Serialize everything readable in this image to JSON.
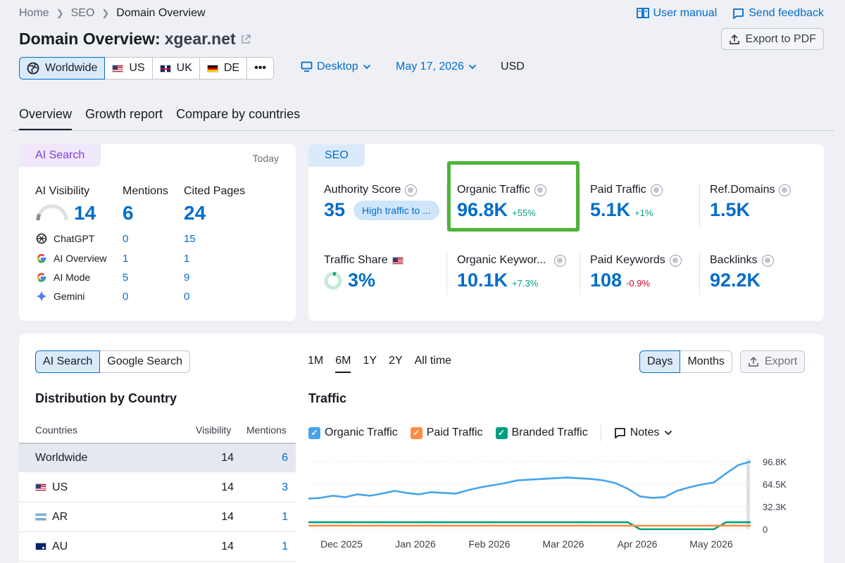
{
  "breadcrumb": [
    "Home",
    "SEO",
    "Domain Overview"
  ],
  "header": {
    "title_prefix": "Domain Overview:",
    "domain": "xgear.net",
    "user_manual": "User manual",
    "send_feedback": "Send feedback",
    "export_pdf": "Export to PDF"
  },
  "regions": [
    {
      "label": "Worldwide",
      "icon": "globe-icon",
      "selected": true
    },
    {
      "label": "US",
      "icon": "flag-us-icon"
    },
    {
      "label": "UK",
      "icon": "flag-uk-icon"
    },
    {
      "label": "DE",
      "icon": "flag-de-icon"
    },
    {
      "label": "•••",
      "icon": "more-icon"
    }
  ],
  "filters": {
    "device": "Desktop",
    "date": "May 17, 2026",
    "currency": "USD"
  },
  "tabs": [
    "Overview",
    "Growth report",
    "Compare by countries"
  ],
  "ai_card": {
    "tab": "AI Search",
    "period": "Today",
    "headers": [
      "AI Visibility",
      "Mentions",
      "Cited Pages"
    ],
    "totals": {
      "visibility": "14",
      "mentions": "6",
      "cited": "24"
    },
    "visibility_fraction": 0.14,
    "rows": [
      {
        "name": "ChatGPT",
        "mentions": "0",
        "cited": "15",
        "icon": "chatgpt-icon"
      },
      {
        "name": "AI Overview",
        "mentions": "1",
        "cited": "1",
        "icon": "google-icon"
      },
      {
        "name": "AI Mode",
        "mentions": "5",
        "cited": "9",
        "icon": "google-icon"
      },
      {
        "name": "Gemini",
        "mentions": "0",
        "cited": "0",
        "icon": "gemini-icon"
      }
    ]
  },
  "seo_card": {
    "tab": "SEO",
    "authority": {
      "label": "Authority Score",
      "value": "35",
      "badge": "High traffic to ..."
    },
    "organic_traffic": {
      "label": "Organic Traffic",
      "value": "96.8K",
      "delta": "+55%"
    },
    "paid_traffic": {
      "label": "Paid Traffic",
      "value": "5.1K",
      "delta": "+1%"
    },
    "ref_domains": {
      "label": "Ref.Domains",
      "value": "1.5K"
    },
    "traffic_share": {
      "label": "Traffic Share",
      "value": "3%",
      "fraction": 0.03
    },
    "organic_keywords": {
      "label": "Organic Keywor...",
      "value": "10.1K",
      "delta": "+7.3%"
    },
    "paid_keywords": {
      "label": "Paid Keywords",
      "value": "108",
      "delta": "-0.9%"
    },
    "backlinks": {
      "label": "Backlinks",
      "value": "92.2K"
    }
  },
  "bottom": {
    "source_toggle": [
      "AI Search",
      "Google Search"
    ],
    "distribution_title": "Distribution by Country",
    "table_headers": [
      "Countries",
      "Visibility",
      "Mentions"
    ],
    "table_rows": [
      {
        "country": "Worldwide",
        "visibility": "14",
        "mentions": "6",
        "flag": ""
      },
      {
        "country": "US",
        "visibility": "14",
        "mentions": "3",
        "flag": "us"
      },
      {
        "country": "AR",
        "visibility": "14",
        "mentions": "1",
        "flag": "ar"
      },
      {
        "country": "AU",
        "visibility": "14",
        "mentions": "1",
        "flag": "au"
      }
    ],
    "periods": [
      "1M",
      "6M",
      "1Y",
      "2Y",
      "All time"
    ],
    "active_period": "6M",
    "granularity": [
      "Days",
      "Months"
    ],
    "export": "Export",
    "traffic_title": "Traffic",
    "legend": [
      {
        "name": "Organic Traffic",
        "color": "#45a4ec"
      },
      {
        "name": "Paid Traffic",
        "color": "#ff8c43"
      },
      {
        "name": "Branded Traffic",
        "color": "#009f81"
      }
    ],
    "notes": "Notes"
  },
  "chart_data": {
    "type": "line",
    "title": "Traffic",
    "x_ticks": [
      "Dec 2025",
      "Jan 2026",
      "Feb 2026",
      "Mar 2026",
      "Apr 2026",
      "May 2026"
    ],
    "y_ticks": [
      "96.8K",
      "64.5K",
      "32.3K",
      "0"
    ],
    "ylim": [
      0,
      96800
    ],
    "series": [
      {
        "name": "Organic Traffic",
        "color": "#45a4ec",
        "values": [
          44000,
          45000,
          48000,
          46000,
          50000,
          48000,
          51000,
          55000,
          52000,
          50000,
          53000,
          52000,
          51000,
          56000,
          60000,
          63000,
          66000,
          70000,
          71000,
          72000,
          73000,
          74000,
          73000,
          72000,
          70000,
          66000,
          58000,
          47000,
          45000,
          46000,
          55000,
          60000,
          64000,
          67000,
          80000,
          92000,
          96800
        ]
      },
      {
        "name": "Paid Traffic",
        "color": "#ff8c43",
        "values": [
          5000,
          5000,
          5200,
          5100,
          5000,
          5000,
          5100,
          5000,
          5000,
          5000,
          5100,
          5000,
          5000,
          5000,
          5000,
          5100,
          5000,
          5000,
          5000,
          5000,
          5000,
          5000,
          5100,
          5000,
          5000,
          5000,
          5000,
          5000,
          5000,
          5000,
          5000,
          5000,
          5000,
          5000,
          5100,
          5000,
          5100
        ]
      },
      {
        "name": "Branded Traffic",
        "color": "#009f81",
        "values": [
          10000,
          10000,
          10000,
          10000,
          10000,
          10000,
          10000,
          10000,
          10000,
          10000,
          10000,
          10000,
          10000,
          10000,
          10000,
          10000,
          10000,
          10000,
          10000,
          10000,
          10000,
          10000,
          10000,
          10000,
          10000,
          10000,
          10000,
          0,
          0,
          0,
          0,
          0,
          0,
          0,
          10000,
          10000,
          10000
        ]
      }
    ]
  }
}
